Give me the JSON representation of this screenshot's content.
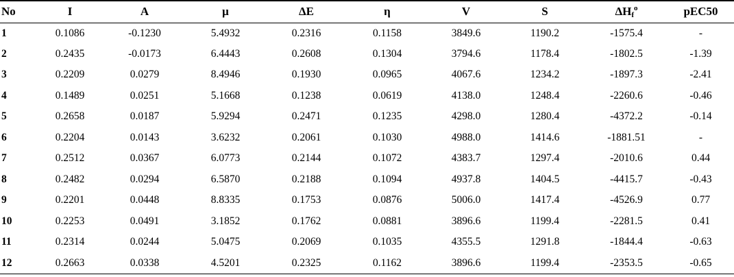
{
  "table": {
    "headers": {
      "no": "No",
      "i": "I",
      "a": "A",
      "mu": "μ",
      "de": "ΔE",
      "eta": "η",
      "v": "V",
      "s": "S",
      "dhf_main": "ΔH",
      "dhf_sub": "f",
      "dhf_sup": "o",
      "pec50": "pEC50"
    },
    "rows": [
      [
        "1",
        "0.1086",
        "-0.1230",
        "5.4932",
        "0.2316",
        "0.1158",
        "3849.6",
        "1190.2",
        "-1575.4",
        "-"
      ],
      [
        "2",
        "0.2435",
        "-0.0173",
        "6.4443",
        "0.2608",
        "0.1304",
        "3794.6",
        "1178.4",
        "-1802.5",
        "-1.39"
      ],
      [
        "3",
        "0.2209",
        "0.0279",
        "8.4946",
        "0.1930",
        "0.0965",
        "4067.6",
        "1234.2",
        "-1897.3",
        "-2.41"
      ],
      [
        "4",
        "0.1489",
        "0.0251",
        "5.1668",
        "0.1238",
        "0.0619",
        "4138.0",
        "1248.4",
        "-2260.6",
        "-0.46"
      ],
      [
        "5",
        "0.2658",
        "0.0187",
        "5.9294",
        "0.2471",
        "0.1235",
        "4298.0",
        "1280.4",
        "-4372.2",
        "-0.14"
      ],
      [
        "6",
        "0.2204",
        "0.0143",
        "3.6232",
        "0.2061",
        "0.1030",
        "4988.0",
        "1414.6",
        "-1881.51",
        "-"
      ],
      [
        "7",
        "0.2512",
        "0.0367",
        "6.0773",
        "0.2144",
        "0.1072",
        "4383.7",
        "1297.4",
        "-2010.6",
        "0.44"
      ],
      [
        "8",
        "0.2482",
        "0.0294",
        "6.5870",
        "0.2188",
        "0.1094",
        "4937.8",
        "1404.5",
        "-4415.7",
        "-0.43"
      ],
      [
        "9",
        "0.2201",
        "0.0448",
        "8.8335",
        "0.1753",
        "0.0876",
        "5006.0",
        "1417.4",
        "-4526.9",
        "0.77"
      ],
      [
        "10",
        "0.2253",
        "0.0491",
        "3.1852",
        "0.1762",
        "0.0881",
        "3896.6",
        "1199.4",
        "-2281.5",
        "0.41"
      ],
      [
        "11",
        "0.2314",
        "0.0244",
        "5.0475",
        "0.2069",
        "0.1035",
        "4355.5",
        "1291.8",
        "-1844.4",
        "-0.63"
      ],
      [
        "12",
        "0.2663",
        "0.0338",
        "4.5201",
        "0.2325",
        "0.1162",
        "3896.6",
        "1199.4",
        "-2353.5",
        "-0.65"
      ]
    ]
  }
}
